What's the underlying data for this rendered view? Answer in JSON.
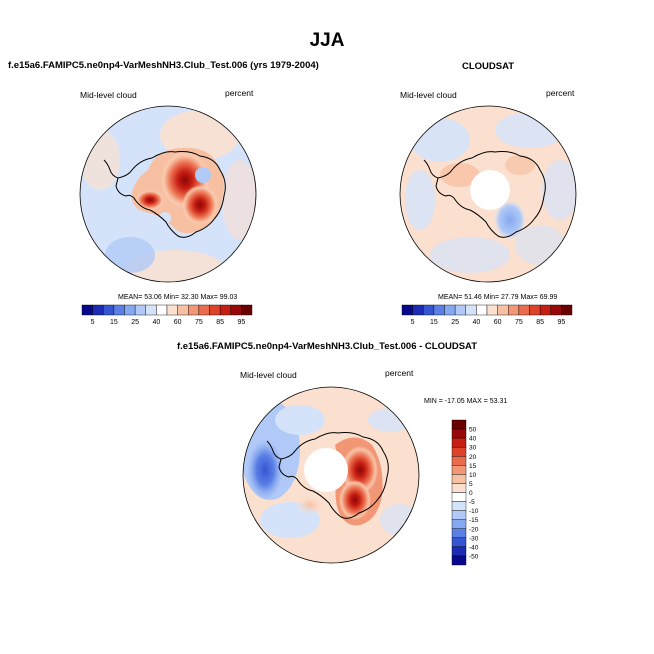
{
  "page": {
    "title": "JJA"
  },
  "panels": {
    "test": {
      "title": "f.e15a6.FAMIPC5.ne0np4-VarMeshNH3.Club_Test.006 (yrs 1979-2004)",
      "left_label": "Mid-level cloud",
      "right_label": "percent",
      "stats": "MEAN=  53.06  Min=  32.30  Max=  99.03"
    },
    "obs": {
      "title": "CLOUDSAT",
      "left_label": "Mid-level cloud",
      "right_label": "percent",
      "stats": "MEAN=  51.46  Min=  27.79  Max=  69.99"
    },
    "diff": {
      "title": "f.e15a6.FAMIPC5.ne0np4-VarMeshNH3.Club_Test.006 - CLOUDSAT",
      "left_label": "Mid-level cloud",
      "right_label": "percent",
      "stats": "MIN = -17.05  MAX =  53.31"
    }
  },
  "chart_data": [
    {
      "type": "heatmap",
      "projection": "south-polar-stereographic",
      "title": "f.e15a6.FAMIPC5.ne0np4-VarMeshNH3.Club_Test.006 (yrs 1979-2004)",
      "variable": "Mid-level cloud",
      "units": "percent",
      "mean": 53.06,
      "min": 32.3,
      "max": 99.03,
      "colorbar_levels": [
        5,
        10,
        15,
        20,
        25,
        30,
        40,
        50,
        60,
        70,
        75,
        80,
        85,
        90,
        95
      ],
      "colorbar_labels": [
        "5",
        "15",
        "25",
        "40",
        "60",
        "75",
        "85",
        "95"
      ],
      "colors": [
        "#08088c",
        "#1c2ab4",
        "#3555d2",
        "#5a80e6",
        "#86a8f0",
        "#b0c9f6",
        "#d4e3fa",
        "#ffffff",
        "#fbe0cf",
        "#f7c0a2",
        "#f29775",
        "#ea6c4c",
        "#dc4328",
        "#c61e12",
        "#980808",
        "#6a0000"
      ]
    },
    {
      "type": "heatmap",
      "projection": "south-polar-stereographic",
      "title": "CLOUDSAT",
      "variable": "Mid-level cloud",
      "units": "percent",
      "mean": 51.46,
      "min": 27.79,
      "max": 69.99,
      "colorbar_levels": [
        5,
        10,
        15,
        20,
        25,
        30,
        40,
        50,
        60,
        70,
        75,
        80,
        85,
        90,
        95
      ],
      "colorbar_labels": [
        "5",
        "15",
        "25",
        "40",
        "60",
        "75",
        "85",
        "95"
      ],
      "colors": [
        "#08088c",
        "#1c2ab4",
        "#3555d2",
        "#5a80e6",
        "#86a8f0",
        "#b0c9f6",
        "#d4e3fa",
        "#ffffff",
        "#fbe0cf",
        "#f7c0a2",
        "#f29775",
        "#ea6c4c",
        "#dc4328",
        "#c61e12",
        "#980808",
        "#6a0000"
      ]
    },
    {
      "type": "heatmap",
      "projection": "south-polar-stereographic",
      "title": "f.e15a6.FAMIPC5.ne0np4-VarMeshNH3.Club_Test.006 - CLOUDSAT",
      "variable": "Mid-level cloud",
      "units": "percent",
      "min": -17.05,
      "max": 53.31,
      "colorbar_levels": [
        50,
        40,
        30,
        20,
        15,
        10,
        5,
        0,
        -5,
        -10,
        -15,
        -20,
        -30,
        -40,
        -50
      ],
      "colorbar_labels": [
        "50",
        "40",
        "30",
        "20",
        "15",
        "10",
        "5",
        "0",
        "-5",
        "-10",
        "-15",
        "-20",
        "-30",
        "-40",
        "-50"
      ],
      "colors": [
        "#6a0000",
        "#980808",
        "#c61e12",
        "#dc4328",
        "#ea6c4c",
        "#f29775",
        "#f7c0a2",
        "#fbe0cf",
        "#ffffff",
        "#d4e3fa",
        "#b0c9f6",
        "#86a8f0",
        "#5a80e6",
        "#3555d2",
        "#1c2ab4",
        "#08088c"
      ]
    }
  ]
}
